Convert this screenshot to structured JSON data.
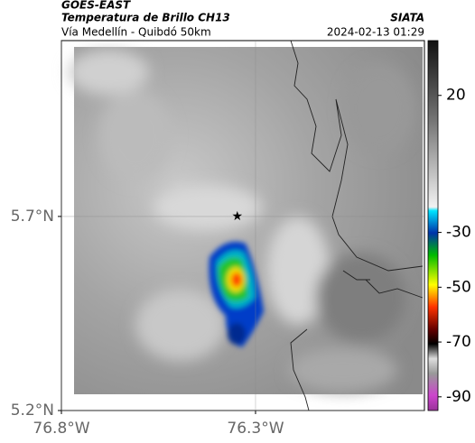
{
  "header": {
    "title": "GOES-EAST",
    "subtitle": "Temperatura de Brillo CH13",
    "source": "SIATA",
    "region": "Vía Medellín - Quibdó 50km",
    "datetime": "2024-02-13 01:29"
  },
  "map": {
    "xlim": [
      -76.8,
      -75.865
    ],
    "ylim": [
      5.2,
      6.153
    ],
    "xticks": [
      {
        "value": -76.8,
        "label": "76.8°W"
      },
      {
        "value": -76.3,
        "label": "76.3°W"
      }
    ],
    "yticks": [
      {
        "value": 5.7,
        "label": "5.7°N"
      },
      {
        "value": 5.2,
        "label": "5.2°N"
      }
    ],
    "grid": true,
    "marker": {
      "lon": -76.347,
      "lat": 5.7
    }
  },
  "colorbar": {
    "clim": [
      -95,
      40
    ],
    "ticks": [
      20,
      -30,
      -50,
      -70,
      -90
    ]
  }
}
